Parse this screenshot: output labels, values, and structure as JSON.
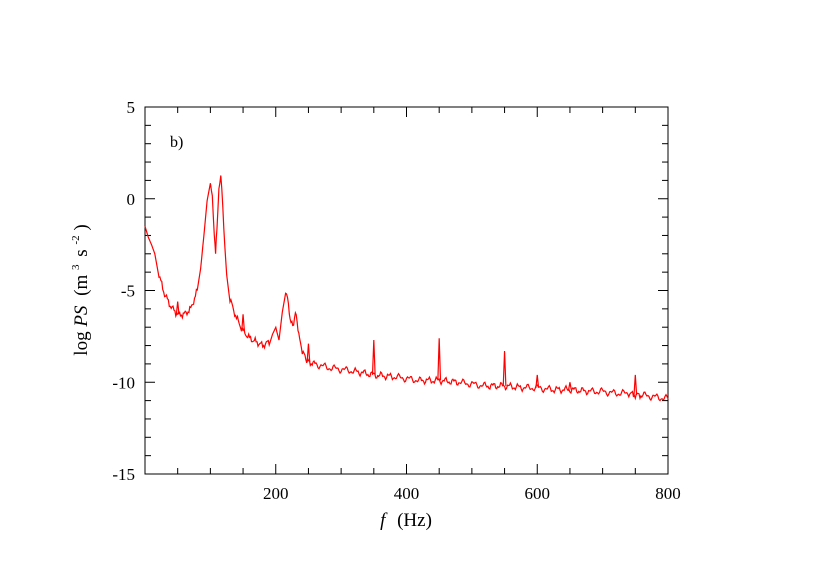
{
  "chart_data": {
    "type": "line",
    "panel_label": "b)",
    "xlabel_italic": "f",
    "xlabel_unit": "(Hz)",
    "ylabel_pre": "log",
    "ylabel_italic": "PS",
    "ylabel_unit_open": "(m",
    "ylabel_unit_exp1": "3",
    "ylabel_unit_mid": "s",
    "ylabel_unit_exp2": "-2",
    "ylabel_unit_close": ")",
    "xlim": [
      0,
      800
    ],
    "ylim": [
      -15,
      5
    ],
    "xticks": [
      200,
      400,
      600,
      800
    ],
    "xtick_labels": [
      "200",
      "400",
      "600",
      "800"
    ],
    "yticks": [
      5,
      0,
      -5,
      -10,
      -15
    ],
    "ytick_labels": [
      "5",
      "0",
      "-5",
      "-10",
      "-15"
    ],
    "grid": false,
    "series": [
      {
        "color": "#ff0000",
        "x": [
          0,
          5,
          10,
          15,
          20,
          30,
          40,
          50,
          60,
          70,
          80,
          85,
          90,
          95,
          100,
          103,
          106,
          108,
          110,
          113,
          116,
          119,
          122,
          125,
          130,
          140,
          150,
          160,
          170,
          180,
          190,
          195,
          200,
          205,
          210,
          215,
          218,
          222,
          226,
          230,
          234,
          238,
          242,
          246,
          250,
          260,
          280,
          300,
          320,
          350,
          380,
          400,
          420,
          450,
          480,
          500,
          520,
          550,
          580,
          600,
          620,
          650,
          680,
          700,
          720,
          740,
          750,
          760,
          780,
          800
        ],
        "y": [
          -1.5,
          -2.1,
          -2.5,
          -3.0,
          -4.0,
          -5.2,
          -5.9,
          -6.3,
          -6.3,
          -6.0,
          -5.0,
          -3.8,
          -2.0,
          0.0,
          1.0,
          0.2,
          -2.0,
          -3.0,
          -1.5,
          0.5,
          1.2,
          -0.5,
          -2.5,
          -4.0,
          -5.5,
          -6.5,
          -7.2,
          -7.6,
          -7.8,
          -8.0,
          -7.8,
          -7.2,
          -6.8,
          -7.5,
          -6.0,
          -5.0,
          -5.5,
          -6.5,
          -7.0,
          -6.2,
          -7.0,
          -8.0,
          -8.4,
          -8.7,
          -8.9,
          -9.0,
          -9.2,
          -9.3,
          -9.4,
          -9.6,
          -9.7,
          -9.8,
          -9.9,
          -9.9,
          -10.0,
          -10.1,
          -10.2,
          -10.2,
          -10.3,
          -10.3,
          -10.4,
          -10.4,
          -10.5,
          -10.5,
          -10.6,
          -10.6,
          -10.7,
          -10.7,
          -10.8,
          -10.9
        ]
      }
    ],
    "spikes": [
      {
        "x": 50,
        "y": -5.6
      },
      {
        "x": 150,
        "y": -6.3
      },
      {
        "x": 250,
        "y": -7.9
      },
      {
        "x": 350,
        "y": -7.7
      },
      {
        "x": 450,
        "y": -7.6
      },
      {
        "x": 550,
        "y": -8.3
      },
      {
        "x": 600,
        "y": -9.6
      },
      {
        "x": 650,
        "y": -10.0
      },
      {
        "x": 750,
        "y": -9.6
      }
    ]
  }
}
